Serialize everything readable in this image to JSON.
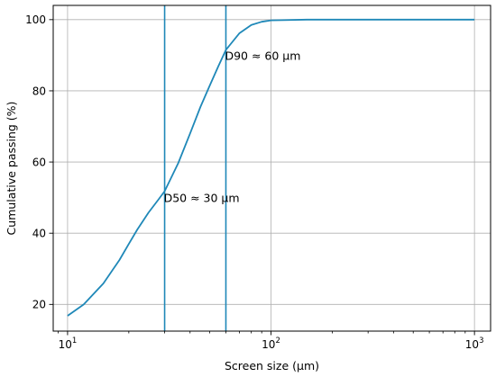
{
  "chart_data": {
    "type": "line",
    "xscale": "log",
    "xlim": [
      8.5,
      1200
    ],
    "ylim": [
      12.5,
      104
    ],
    "xlabel": "Screen size (µm)",
    "ylabel": "Cumulative passing (%)",
    "grid": true,
    "x_ticks": [
      {
        "value": 10,
        "base": "10",
        "exp": "1"
      },
      {
        "value": 100,
        "base": "10",
        "exp": "2"
      },
      {
        "value": 1000,
        "base": "10",
        "exp": "3"
      }
    ],
    "y_ticks": [
      20,
      40,
      60,
      80,
      100
    ],
    "series": [
      {
        "color": "#1f88b8",
        "x": [
          10,
          12,
          15,
          18,
          20,
          22,
          25,
          28,
          30,
          35,
          40,
          45,
          50,
          55,
          60,
          70,
          80,
          90,
          100,
          150,
          200,
          300,
          500,
          700,
          1000
        ],
        "y": [
          16.8,
          20.0,
          25.9,
          32.5,
          37.0,
          41.0,
          45.8,
          49.5,
          51.8,
          59.7,
          68.0,
          75.5,
          81.5,
          86.8,
          91.5,
          96.2,
          98.5,
          99.4,
          99.8,
          100,
          100,
          100,
          100,
          100,
          100
        ]
      }
    ],
    "vlines": [
      {
        "x": 30,
        "color": "#1f88b8"
      },
      {
        "x": 60,
        "color": "#1f88b8"
      }
    ],
    "annotations": [
      {
        "text": "D50 ≈ 30 µm",
        "x": 30,
        "y": 50
      },
      {
        "text": "D90 ≈ 60 µm",
        "x": 60,
        "y": 90
      }
    ]
  }
}
